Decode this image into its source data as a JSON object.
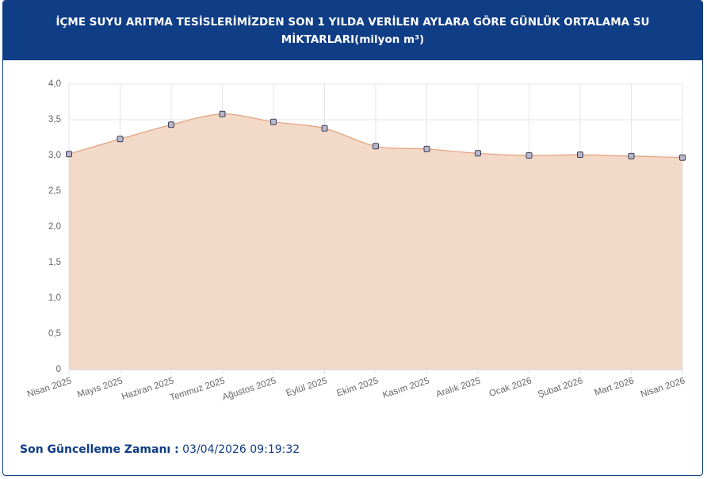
{
  "chart_data": {
    "type": "area",
    "title": "İÇME SUYU ARITMA TESİSLERİMİZDEN SON 1 YILDA VERİLEN AYLARA GÖRE GÜNLÜK ORTALAMA SU MİKTARLARI(milyon m³)",
    "categories": [
      "Nisan 2025",
      "Mayıs 2025",
      "Haziran 2025",
      "Temmuz 2025",
      "Ağustos 2025",
      "Eylül 2025",
      "Ekim 2025",
      "Kasım 2025",
      "Aralık 2025",
      "Ocak 2026",
      "Şubat 2026",
      "Mart 2026",
      "Nisan 2026"
    ],
    "values": [
      3.02,
      3.23,
      3.43,
      3.58,
      3.47,
      3.38,
      3.13,
      3.09,
      3.03,
      3.0,
      3.01,
      2.99,
      2.97
    ],
    "color": "#e4a07c",
    "fill": "#f3d9c7",
    "ylim": [
      0,
      4
    ],
    "yticks": [
      0,
      {
        "value": 0.5,
        "label": "0,5"
      },
      {
        "value": 1,
        "label": "1,0"
      },
      {
        "value": 1.5,
        "label": "1,5"
      },
      {
        "value": 2,
        "label": "2,0"
      },
      {
        "value": 2.5,
        "label": "2,5"
      },
      {
        "value": 3,
        "label": "3,0"
      },
      {
        "value": 3.5,
        "label": "3,5"
      },
      {
        "value": 4,
        "label": "4,0"
      }
    ],
    "grid": true
  },
  "footer": {
    "label": "Son Güncelleme Zamanı :",
    "value": "03/04/2026 09:19:32"
  }
}
